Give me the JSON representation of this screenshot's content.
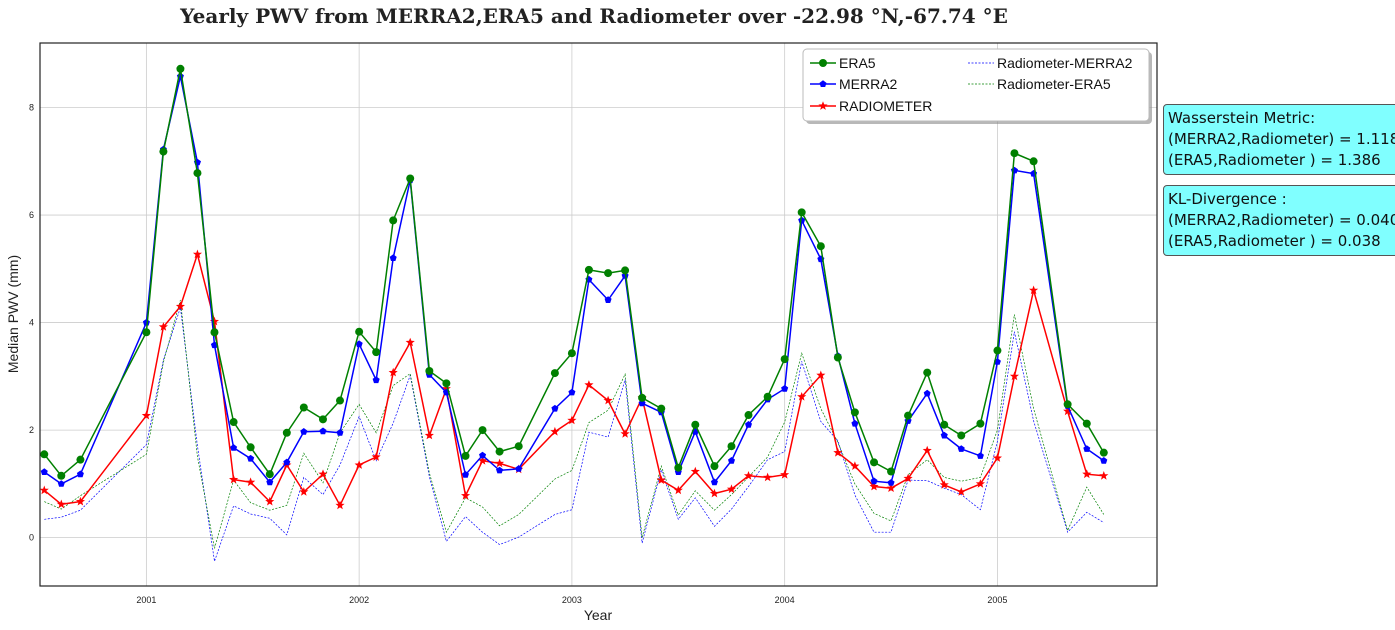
{
  "chart_data": {
    "type": "line",
    "title": "Yearly PWV from MERRA2,ERA5 and Radiometer over -22.98 °N,-67.74 °E",
    "xlabel": "Year",
    "ylabel": "Median PWV (mm)",
    "xlim": [
      2000.5,
      2005.75
    ],
    "ylim": [
      -0.9,
      9.2
    ],
    "x_ticks": [
      2001,
      2002,
      2003,
      2004,
      2005
    ],
    "x_tick_labels": [
      "2001",
      "2002",
      "2003",
      "2004",
      "2005"
    ],
    "y_ticks": [
      0,
      2,
      4,
      6,
      8
    ],
    "y_tick_labels": [
      "0",
      "2",
      "4",
      "6",
      "8"
    ],
    "grid": true,
    "legend_position": "top-right",
    "x": [
      2000.52,
      2000.6,
      2000.69,
      2001.0,
      2001.08,
      2001.16,
      2001.24,
      2001.32,
      2001.41,
      2001.49,
      2001.58,
      2001.66,
      2001.74,
      2001.83,
      2001.91,
      2002.0,
      2002.08,
      2002.16,
      2002.24,
      2002.33,
      2002.41,
      2002.5,
      2002.58,
      2002.66,
      2002.75,
      2002.92,
      2003.0,
      2003.08,
      2003.17,
      2003.25,
      2003.33,
      2003.42,
      2003.5,
      2003.58,
      2003.67,
      2003.75,
      2003.83,
      2003.92,
      2004.0,
      2004.08,
      2004.17,
      2004.25,
      2004.33,
      2004.42,
      2004.5,
      2004.58,
      2004.67,
      2004.75,
      2004.83,
      2004.92,
      2005.0,
      2005.08,
      2005.17,
      2005.33,
      2005.42,
      2005.5
    ],
    "series": [
      {
        "name": "ERA5",
        "color": "#008000",
        "marker": "circle",
        "style": "solid",
        "values": [
          1.55,
          1.15,
          1.45,
          3.82,
          7.18,
          8.72,
          6.78,
          3.82,
          2.15,
          1.68,
          1.18,
          1.95,
          2.42,
          2.2,
          2.55,
          3.83,
          3.45,
          5.9,
          6.68,
          3.1,
          2.87,
          1.52,
          2.0,
          1.6,
          1.7,
          3.06,
          3.43,
          4.98,
          4.92,
          4.97,
          2.6,
          2.4,
          1.3,
          2.1,
          1.33,
          1.7,
          2.28,
          2.62,
          3.32,
          6.05,
          5.42,
          3.35,
          2.33,
          1.4,
          1.23,
          2.27,
          3.07,
          2.1,
          1.9,
          2.12,
          3.48,
          7.15,
          7.0,
          2.48,
          2.12,
          1.58
        ]
      },
      {
        "name": "MERRA2",
        "color": "#0000ff",
        "marker": "pentagon",
        "style": "solid",
        "values": [
          1.22,
          1.0,
          1.18,
          4.0,
          7.22,
          8.58,
          6.98,
          3.58,
          1.67,
          1.47,
          1.03,
          1.4,
          1.97,
          1.98,
          1.95,
          3.6,
          2.93,
          5.2,
          6.65,
          3.03,
          2.7,
          1.17,
          1.53,
          1.25,
          1.28,
          2.4,
          2.7,
          4.8,
          4.42,
          4.87,
          2.5,
          2.33,
          1.22,
          1.97,
          1.03,
          1.43,
          2.1,
          2.57,
          2.77,
          5.9,
          5.18,
          3.38,
          2.12,
          1.05,
          1.02,
          2.17,
          2.68,
          1.9,
          1.65,
          1.52,
          3.27,
          6.83,
          6.77,
          2.45,
          1.65,
          1.43
        ]
      },
      {
        "name": "RADIOMETER",
        "color": "#ff0000",
        "marker": "star",
        "style": "solid",
        "values": [
          0.88,
          0.62,
          0.67,
          2.27,
          3.92,
          4.3,
          5.27,
          4.02,
          1.08,
          1.03,
          0.67,
          1.35,
          0.85,
          1.18,
          0.6,
          1.35,
          1.5,
          3.07,
          3.63,
          1.9,
          2.77,
          0.78,
          1.43,
          1.38,
          1.27,
          1.97,
          2.18,
          2.84,
          2.55,
          1.93,
          2.6,
          1.07,
          0.88,
          1.23,
          0.82,
          0.9,
          1.15,
          1.12,
          1.17,
          2.62,
          3.02,
          1.58,
          1.33,
          0.95,
          0.92,
          1.1,
          1.62,
          0.98,
          0.85,
          1.0,
          1.48,
          3.0,
          4.6,
          2.35,
          1.18,
          1.15
        ]
      },
      {
        "name": "Radiometer-MERRA2",
        "color": "#0000ff",
        "marker": "none",
        "style": "dotted",
        "values": [
          0.34,
          0.38,
          0.51,
          1.73,
          3.3,
          4.28,
          1.71,
          -0.44,
          0.59,
          0.44,
          0.36,
          0.05,
          1.12,
          0.8,
          1.35,
          2.25,
          1.43,
          2.13,
          3.02,
          1.13,
          -0.07,
          0.39,
          0.1,
          -0.13,
          0.01,
          0.43,
          0.52,
          1.96,
          1.87,
          2.94,
          -0.1,
          1.26,
          0.34,
          0.74,
          0.21,
          0.53,
          0.95,
          1.45,
          1.6,
          3.28,
          2.16,
          1.8,
          0.79,
          0.1,
          0.1,
          1.07,
          1.06,
          0.92,
          0.8,
          0.52,
          1.79,
          3.83,
          2.17,
          0.1,
          0.47,
          0.28
        ]
      },
      {
        "name": "Radiometer-ERA5",
        "color": "#008000",
        "marker": "none",
        "style": "dotted",
        "values": [
          0.67,
          0.53,
          0.78,
          1.55,
          3.26,
          4.42,
          1.51,
          -0.2,
          1.07,
          0.65,
          0.51,
          0.6,
          1.57,
          1.02,
          1.95,
          2.48,
          1.95,
          2.83,
          3.05,
          1.2,
          0.1,
          0.74,
          0.57,
          0.22,
          0.43,
          1.09,
          1.25,
          2.14,
          2.37,
          3.04,
          0.0,
          1.33,
          0.42,
          0.87,
          0.51,
          0.8,
          1.13,
          1.5,
          2.15,
          3.43,
          2.4,
          1.77,
          1.0,
          0.45,
          0.31,
          1.17,
          1.45,
          1.12,
          1.05,
          1.12,
          2.0,
          4.15,
          2.4,
          0.13,
          0.94,
          0.43
        ]
      }
    ]
  },
  "annotations": {
    "wasserstein": {
      "title": "Wasserstein Metric:",
      "line1": "(MERRA2,Radiometer) = 1.118",
      "line2": "(ERA5,Radiometer ) = 1.386"
    },
    "kl": {
      "title": "KL-Divergence :",
      "line1": "(MERRA2,Radiometer) = 0.040",
      "line2": "(ERA5,Radiometer ) = 0.038"
    }
  }
}
